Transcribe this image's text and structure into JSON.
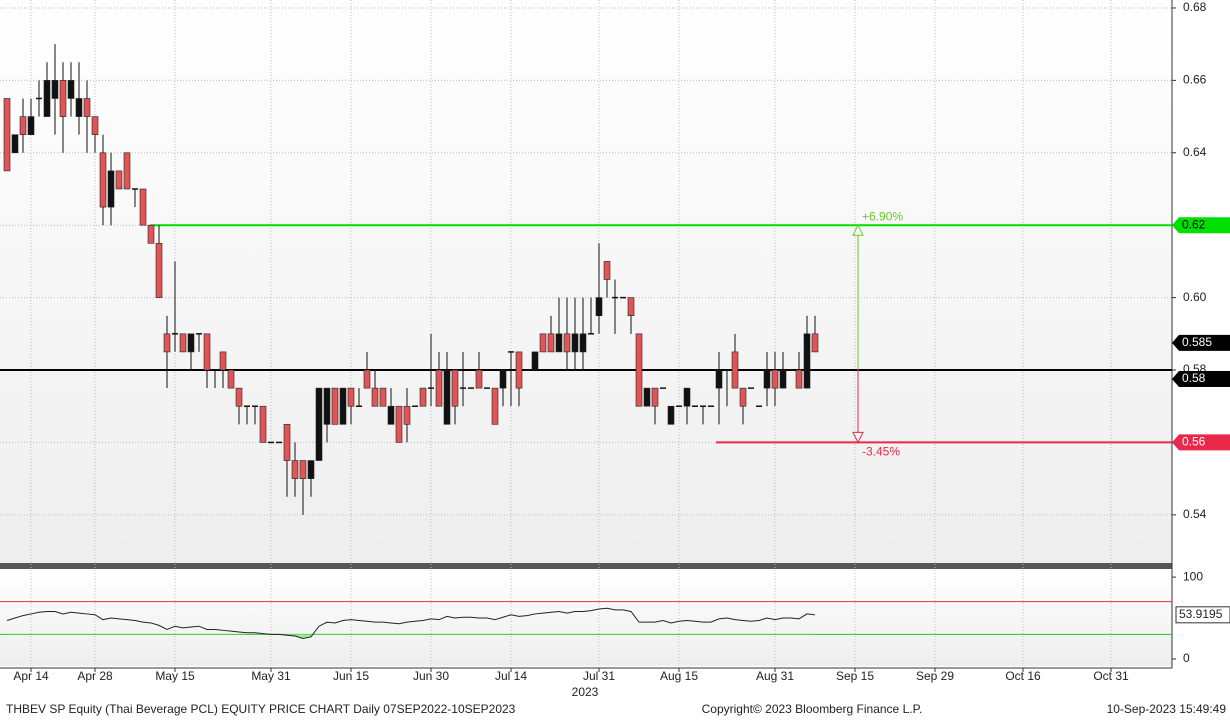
{
  "chart_data": [
    {
      "type": "candlestick",
      "categories": [
        null,
        null,
        null,
        "Apr 14",
        null,
        null,
        null,
        null,
        null,
        null,
        null,
        "Apr 28",
        null,
        null,
        null,
        null,
        null,
        null,
        null,
        null,
        null,
        "May 15",
        null,
        null,
        null,
        null,
        null,
        null,
        null,
        null,
        null,
        null,
        null,
        "May 31",
        null,
        null,
        null,
        null,
        null,
        null,
        null,
        null,
        null,
        "Jun 15",
        null,
        null,
        null,
        null,
        null,
        null,
        null,
        null,
        null,
        "Jun 30",
        null,
        null,
        null,
        null,
        null,
        null,
        null,
        null,
        null,
        "Jul 14",
        null,
        null,
        null,
        null,
        null,
        null,
        null,
        null,
        null,
        null,
        "Jul 31",
        null,
        null,
        null,
        null,
        null,
        null,
        null,
        null,
        null,
        "Aug 15",
        null,
        null,
        null,
        null,
        null,
        null,
        null,
        null,
        null,
        null,
        null,
        "Aug 31",
        null,
        null,
        null,
        null,
        null,
        null,
        null,
        null,
        null,
        "Sep 15",
        null,
        null,
        null,
        null,
        null,
        null,
        null,
        null,
        null,
        "Sep 29",
        null,
        null,
        null,
        null,
        null,
        null,
        null,
        null,
        null,
        null,
        "Oct 16",
        null,
        null,
        null,
        null,
        null,
        null,
        null,
        null,
        null,
        null,
        "Oct 31",
        null,
        null,
        null,
        null,
        null,
        null,
        null
      ],
      "x_sublabel": "2023",
      "open": [
        0.655,
        0.64,
        0.65,
        0.645,
        0.655,
        0.65,
        0.655,
        0.66,
        0.655,
        0.65,
        0.655,
        0.65,
        0.64,
        0.625,
        0.635,
        0.64,
        0.63,
        0.63,
        0.62,
        0.615,
        0.59,
        0.59,
        0.59,
        0.585,
        0.59,
        0.59,
        0.58,
        0.585,
        0.58,
        0.575,
        0.57,
        0.57,
        0.57,
        0.56,
        0.56,
        0.565,
        0.555,
        0.555,
        0.55,
        0.555,
        0.565,
        0.575,
        0.565,
        0.575,
        0.57,
        0.58,
        0.575,
        0.575,
        0.565,
        0.57,
        0.57,
        0.57,
        0.575,
        0.575,
        0.58,
        0.565,
        0.58,
        0.575,
        0.575,
        0.58,
        0.575,
        0.575,
        0.575,
        0.585,
        0.585,
        0.58,
        0.58,
        0.59,
        0.59,
        0.585,
        0.59,
        0.585,
        0.585,
        0.59,
        0.595,
        0.61,
        0.6,
        0.6,
        0.6,
        0.59,
        0.57,
        0.575,
        0.575,
        0.565,
        0.57,
        0.57,
        0.57,
        0.57,
        0.57,
        0.575,
        0.58,
        0.585,
        0.575,
        0.575,
        0.57,
        0.575,
        0.58,
        0.575,
        0.58,
        0.58,
        0.575,
        0.59,
        null,
        null,
        null,
        null,
        null,
        null,
        null,
        null,
        null,
        null,
        null,
        null,
        null,
        null,
        null,
        null,
        null,
        null,
        null,
        null,
        null,
        null,
        null,
        null,
        null,
        null,
        null,
        null,
        null,
        null,
        null,
        null,
        null,
        null,
        null,
        null,
        null,
        null,
        null,
        null,
        null,
        null,
        null,
        null
      ],
      "high": [
        0.655,
        0.645,
        0.655,
        0.655,
        0.66,
        0.665,
        0.67,
        0.665,
        0.665,
        0.665,
        0.66,
        0.65,
        0.645,
        0.64,
        0.635,
        0.64,
        0.63,
        0.63,
        0.62,
        0.62,
        0.595,
        0.61,
        0.59,
        0.59,
        0.59,
        0.59,
        0.58,
        0.585,
        0.58,
        0.575,
        0.57,
        0.57,
        0.57,
        0.56,
        0.56,
        0.565,
        0.56,
        0.555,
        0.555,
        0.575,
        0.575,
        0.575,
        0.575,
        0.575,
        0.575,
        0.585,
        0.58,
        0.575,
        0.575,
        0.57,
        0.575,
        0.57,
        0.575,
        0.59,
        0.585,
        0.585,
        0.58,
        0.585,
        0.575,
        0.585,
        0.575,
        0.575,
        0.58,
        0.585,
        0.585,
        0.58,
        0.585,
        0.59,
        0.595,
        0.6,
        0.6,
        0.6,
        0.6,
        0.6,
        0.615,
        0.61,
        0.605,
        0.6,
        0.6,
        0.59,
        0.575,
        0.575,
        0.575,
        0.57,
        0.57,
        0.575,
        0.57,
        0.57,
        0.57,
        0.585,
        0.58,
        0.59,
        0.575,
        0.575,
        0.57,
        0.585,
        0.585,
        0.585,
        0.58,
        0.585,
        0.595,
        0.595,
        null,
        null,
        null,
        null,
        null,
        null,
        null,
        null,
        null,
        null,
        null,
        null,
        null,
        null,
        null,
        null,
        null,
        null,
        null,
        null,
        null,
        null,
        null,
        null,
        null,
        null,
        null,
        null,
        null,
        null,
        null,
        null,
        null,
        null,
        null,
        null,
        null,
        null,
        null,
        null,
        null,
        null,
        null,
        null
      ],
      "low": [
        0.635,
        0.64,
        0.64,
        0.645,
        0.65,
        0.65,
        0.645,
        0.64,
        0.65,
        0.645,
        0.64,
        0.64,
        0.62,
        0.62,
        0.63,
        0.63,
        0.625,
        0.62,
        0.615,
        0.6,
        0.575,
        0.585,
        0.585,
        0.58,
        0.585,
        0.575,
        0.575,
        0.575,
        0.575,
        0.565,
        0.565,
        0.565,
        0.56,
        0.56,
        0.56,
        0.545,
        0.545,
        0.54,
        0.545,
        0.555,
        0.56,
        0.565,
        0.565,
        0.565,
        0.57,
        0.575,
        0.57,
        0.57,
        0.565,
        0.56,
        0.56,
        0.57,
        0.57,
        0.57,
        0.57,
        0.565,
        0.565,
        0.57,
        0.575,
        0.575,
        0.575,
        0.565,
        0.57,
        0.57,
        0.57,
        0.58,
        0.58,
        0.585,
        0.585,
        0.585,
        0.58,
        0.58,
        0.58,
        0.59,
        0.59,
        0.6,
        0.59,
        0.6,
        0.59,
        0.57,
        0.57,
        0.565,
        0.575,
        0.565,
        0.57,
        0.565,
        0.57,
        0.565,
        0.57,
        0.565,
        0.57,
        0.575,
        0.565,
        0.575,
        0.57,
        0.57,
        0.57,
        0.575,
        0.58,
        0.575,
        0.575,
        0.585,
        null,
        null,
        null,
        null,
        null,
        null,
        null,
        null,
        null,
        null,
        null,
        null,
        null,
        null,
        null,
        null,
        null,
        null,
        null,
        null,
        null,
        null,
        null,
        null,
        null,
        null,
        null,
        null,
        null,
        null,
        null,
        null,
        null,
        null,
        null,
        null,
        null,
        null,
        null,
        null,
        null,
        null,
        null,
        null
      ],
      "close": [
        0.635,
        0.645,
        0.645,
        0.65,
        0.655,
        0.66,
        0.66,
        0.65,
        0.66,
        0.655,
        0.65,
        0.645,
        0.625,
        0.635,
        0.63,
        0.63,
        0.63,
        0.62,
        0.615,
        0.6,
        0.585,
        0.59,
        0.585,
        0.59,
        0.59,
        0.58,
        0.58,
        0.58,
        0.575,
        0.57,
        0.57,
        0.57,
        0.56,
        0.56,
        0.56,
        0.555,
        0.55,
        0.55,
        0.555,
        0.575,
        0.575,
        0.565,
        0.575,
        0.57,
        0.57,
        0.575,
        0.57,
        0.57,
        0.57,
        0.56,
        0.565,
        0.57,
        0.57,
        0.575,
        0.57,
        0.58,
        0.57,
        0.575,
        0.575,
        0.575,
        0.575,
        0.565,
        0.58,
        0.585,
        0.575,
        0.58,
        0.585,
        0.585,
        0.585,
        0.59,
        0.585,
        0.59,
        0.59,
        0.59,
        0.6,
        0.605,
        0.6,
        0.6,
        0.595,
        0.57,
        0.575,
        0.57,
        0.575,
        0.57,
        0.57,
        0.575,
        0.57,
        0.57,
        0.57,
        0.58,
        0.58,
        0.575,
        0.57,
        0.575,
        0.57,
        0.58,
        0.575,
        0.58,
        0.58,
        0.575,
        0.59,
        0.585,
        null,
        null,
        null,
        null,
        null,
        null,
        null,
        null,
        null,
        null,
        null,
        null,
        null,
        null,
        null,
        null,
        null,
        null,
        null,
        null,
        null,
        null,
        null,
        null,
        null,
        null,
        null,
        null,
        null,
        null,
        null,
        null,
        null,
        null,
        null,
        null,
        null,
        null,
        null,
        null,
        null,
        null,
        null,
        null
      ],
      "up_color": "#111111",
      "down_color": "#e05555",
      "ylim": [
        0.5267,
        0.6822
      ],
      "yticks": [
        0.54,
        0.56,
        0.58,
        {
          "value": 0.6,
          "label": "0.60"
        },
        0.62,
        0.64,
        0.66,
        0.68
      ],
      "grid": true,
      "price_labels": [
        {
          "value": 0.62,
          "color": "#00e000",
          "text_color": "#000000"
        },
        {
          "value": 0.585,
          "color": "#000000",
          "text_color": "#ffffff"
        },
        {
          "value": 0.58,
          "color": "#000000",
          "text_color": "#ffffff"
        },
        {
          "value": 0.56,
          "color": "#e8294a",
          "text_color": "#ffffff"
        }
      ],
      "reference_lines": [
        {
          "value": 0.62,
          "color": "#00dd00"
        },
        {
          "value": 0.58,
          "color": "#000000"
        },
        {
          "value": 0.56,
          "color": "#e8294a"
        }
      ],
      "annotations": [
        {
          "text": "+6.90%",
          "from": 0.58,
          "to": 0.62,
          "color": "#66cc22"
        },
        {
          "text": "-3.45%",
          "from": 0.58,
          "to": 0.56,
          "color": "#e8294a"
        }
      ]
    },
    {
      "type": "line",
      "values": [
        47,
        50,
        53,
        55,
        57,
        58,
        58,
        55,
        57,
        56,
        55,
        54,
        48,
        50,
        49,
        48,
        47,
        45,
        44,
        41,
        36,
        40,
        38,
        39,
        40,
        36,
        36,
        35,
        34,
        33,
        32,
        32,
        31,
        30,
        30,
        29,
        28,
        25,
        27,
        40,
        45,
        44,
        47,
        48,
        47,
        46,
        45,
        45,
        44,
        43,
        45,
        46,
        47,
        49,
        48,
        52,
        50,
        51,
        51,
        50,
        50,
        48,
        51,
        54,
        52,
        53,
        55,
        56,
        57,
        58,
        56,
        58,
        58,
        59,
        61,
        62,
        60,
        60,
        58,
        45,
        45,
        45,
        47,
        44,
        46,
        47,
        46,
        45,
        45,
        49,
        50,
        48,
        47,
        46,
        47,
        50,
        48,
        50,
        50,
        49,
        55,
        53.9195
      ],
      "color": "#222222",
      "ylim": [
        -8.6,
        109.9
      ],
      "yticks": [
        0,
        100
      ],
      "levels": [
        {
          "value": 70,
          "color": "#e03030"
        },
        {
          "value": 30,
          "color": "#22cc22"
        }
      ],
      "oversold_fill": "#99ee99",
      "last_label": 53.9195
    }
  ],
  "footer": {
    "left": "THBEV SP Equity (Thai Beverage PCL) EQUITY PRICE CHART  Daily 07SEP2022-10SEP2023",
    "center": "Copyright© 2023 Bloomberg Finance L.P.",
    "right": "10-Sep-2023 15:49:49"
  }
}
